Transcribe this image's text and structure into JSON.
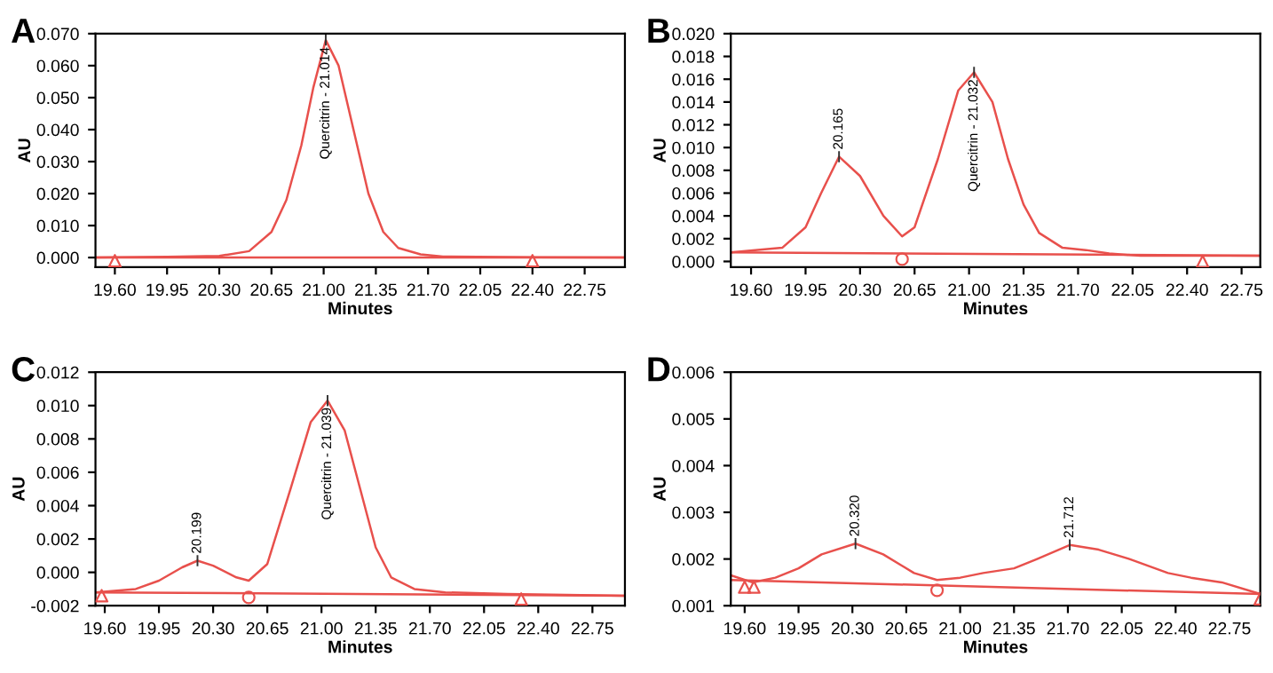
{
  "chart_data": [
    {
      "type": "line",
      "title": "A",
      "xlabel": "Minutes",
      "ylabel": "AU",
      "grid": false,
      "legend": false,
      "xlim": [
        19.47,
        23.02
      ],
      "ylim": [
        -0.003,
        0.07
      ],
      "xticks": [
        {
          "value": 19.6,
          "label": "19.60"
        },
        {
          "value": 19.95,
          "label": "19.95"
        },
        {
          "value": 20.3,
          "label": "20.30"
        },
        {
          "value": 20.65,
          "label": "20.65"
        },
        {
          "value": 21.0,
          "label": "21.00"
        },
        {
          "value": 21.35,
          "label": "21.35"
        },
        {
          "value": 21.7,
          "label": "21.70"
        },
        {
          "value": 22.05,
          "label": "22.05"
        },
        {
          "value": 22.4,
          "label": "22.40"
        },
        {
          "value": 22.75,
          "label": "22.75"
        }
      ],
      "yticks": [
        {
          "value": 0,
          "label": "0.000"
        },
        {
          "value": 0.01,
          "label": "0.010"
        },
        {
          "value": 0.02,
          "label": "0.020"
        },
        {
          "value": 0.03,
          "label": "0.030"
        },
        {
          "value": 0.04,
          "label": "0.040"
        },
        {
          "value": 0.05,
          "label": "0.050"
        },
        {
          "value": 0.06,
          "label": "0.060"
        },
        {
          "value": 0.07,
          "label": "0.070"
        }
      ],
      "annotations": [
        {
          "text": "Quercitrin - 21.014",
          "x": 21.014,
          "y": 0.068
        }
      ],
      "series": [
        {
          "color": "#e8504c",
          "x": [
            19.47,
            19.95,
            20.3,
            20.5,
            20.65,
            20.75,
            20.85,
            20.93,
            21.014,
            21.1,
            21.2,
            21.3,
            21.4,
            21.5,
            21.65,
            21.8,
            22.4,
            23.02
          ],
          "values": [
            0.0,
            0.0002,
            0.0005,
            0.002,
            0.008,
            0.018,
            0.035,
            0.053,
            0.068,
            0.06,
            0.04,
            0.02,
            0.008,
            0.003,
            0.001,
            0.0003,
            0.0001,
            0.0
          ]
        },
        {
          "color": "#e8504c",
          "x": [
            19.47,
            23.02
          ],
          "values": [
            0.0,
            0.0
          ]
        },
        {
          "type": "scatter",
          "marker": "triangle",
          "color": "#e8504c",
          "x": [
            19.6,
            22.4
          ],
          "values": [
            -0.001,
            -0.001
          ]
        }
      ]
    },
    {
      "type": "line",
      "title": "B",
      "xlabel": "Minutes",
      "ylabel": "AU",
      "grid": false,
      "legend": false,
      "xlim": [
        19.47,
        22.87
      ],
      "ylim": [
        -0.0005,
        0.02
      ],
      "xticks": [
        {
          "value": 19.6,
          "label": "19.60"
        },
        {
          "value": 19.95,
          "label": "19.95"
        },
        {
          "value": 20.3,
          "label": "20.30"
        },
        {
          "value": 20.65,
          "label": "20.65"
        },
        {
          "value": 21.0,
          "label": "21.00"
        },
        {
          "value": 21.35,
          "label": "21.35"
        },
        {
          "value": 21.7,
          "label": "21.70"
        },
        {
          "value": 22.05,
          "label": "22.05"
        },
        {
          "value": 22.4,
          "label": "22.40"
        },
        {
          "value": 22.75,
          "label": "22.75"
        }
      ],
      "yticks": [
        {
          "value": 0,
          "label": "0.000"
        },
        {
          "value": 0.002,
          "label": "0.002"
        },
        {
          "value": 0.004,
          "label": "0.004"
        },
        {
          "value": 0.006,
          "label": "0.006"
        },
        {
          "value": 0.008,
          "label": "0.008"
        },
        {
          "value": 0.01,
          "label": "0.010"
        },
        {
          "value": 0.012,
          "label": "0.012"
        },
        {
          "value": 0.014,
          "label": "0.014"
        },
        {
          "value": 0.016,
          "label": "0.016"
        },
        {
          "value": 0.018,
          "label": "0.018"
        },
        {
          "value": 0.02,
          "label": "0.020"
        }
      ],
      "annotations": [
        {
          "text": "20.165",
          "x": 20.165,
          "y": 0.0092
        },
        {
          "text": "Quercitrin - 21.032",
          "x": 21.032,
          "y": 0.0166
        }
      ],
      "series": [
        {
          "color": "#e8504c",
          "x": [
            19.47,
            19.8,
            19.95,
            20.05,
            20.165,
            20.3,
            20.45,
            20.57,
            20.65,
            20.8,
            20.93,
            21.032,
            21.15,
            21.25,
            21.35,
            21.45,
            21.6,
            21.75,
            21.9,
            22.1,
            22.87
          ],
          "values": [
            0.0008,
            0.0012,
            0.003,
            0.006,
            0.0092,
            0.0075,
            0.004,
            0.0022,
            0.003,
            0.009,
            0.015,
            0.0166,
            0.014,
            0.009,
            0.005,
            0.0025,
            0.0012,
            0.001,
            0.0007,
            0.0005,
            0.0005
          ]
        },
        {
          "color": "#e8504c",
          "x": [
            19.47,
            22.87
          ],
          "values": [
            0.0008,
            0.0005
          ]
        },
        {
          "type": "scatter",
          "marker": "circle",
          "color": "#e8504c",
          "x": [
            20.57
          ],
          "values": [
            0.0002
          ]
        },
        {
          "type": "scatter",
          "marker": "triangle",
          "color": "#e8504c",
          "x": [
            22.5
          ],
          "values": [
            0.0
          ]
        }
      ]
    },
    {
      "type": "line",
      "title": "C",
      "xlabel": "Minutes",
      "ylabel": "AU",
      "grid": false,
      "legend": false,
      "xlim": [
        19.54,
        22.96
      ],
      "ylim": [
        -0.002,
        0.012
      ],
      "xticks": [
        {
          "value": 19.6,
          "label": "19.60"
        },
        {
          "value": 19.95,
          "label": "19.95"
        },
        {
          "value": 20.3,
          "label": "20.30"
        },
        {
          "value": 20.65,
          "label": "20.65"
        },
        {
          "value": 21.0,
          "label": "21.00"
        },
        {
          "value": 21.35,
          "label": "21.35"
        },
        {
          "value": 21.7,
          "label": "21.70"
        },
        {
          "value": 22.05,
          "label": "22.05"
        },
        {
          "value": 22.4,
          "label": "22.40"
        },
        {
          "value": 22.75,
          "label": "22.75"
        }
      ],
      "yticks": [
        {
          "value": -0.002,
          "label": "-0.002"
        },
        {
          "value": 0,
          "label": "0.000"
        },
        {
          "value": 0.002,
          "label": "0.002"
        },
        {
          "value": 0.004,
          "label": "0.004"
        },
        {
          "value": 0.006,
          "label": "0.006"
        },
        {
          "value": 0.008,
          "label": "0.008"
        },
        {
          "value": 0.01,
          "label": "0.010"
        },
        {
          "value": 0.012,
          "label": "0.012"
        }
      ],
      "annotations": [
        {
          "text": "20.199",
          "x": 20.199,
          "y": 0.0007
        },
        {
          "text": "Quercitrin - 21.039",
          "x": 21.039,
          "y": 0.0103
        }
      ],
      "series": [
        {
          "color": "#e8504c",
          "x": [
            19.54,
            19.8,
            19.95,
            20.1,
            20.199,
            20.3,
            20.45,
            20.53,
            20.65,
            20.8,
            20.93,
            21.039,
            21.15,
            21.25,
            21.35,
            21.45,
            21.6,
            21.8,
            22.2,
            22.96
          ],
          "values": [
            -0.0012,
            -0.001,
            -0.0005,
            0.0003,
            0.0007,
            0.0004,
            -0.0003,
            -0.0005,
            0.0005,
            0.005,
            0.009,
            0.0103,
            0.0085,
            0.005,
            0.0015,
            -0.0003,
            -0.001,
            -0.0012,
            -0.0013,
            -0.0014
          ]
        },
        {
          "color": "#e8504c",
          "x": [
            19.54,
            22.96
          ],
          "values": [
            -0.0012,
            -0.0014
          ]
        },
        {
          "type": "scatter",
          "marker": "triangle",
          "color": "#e8504c",
          "x": [
            19.58,
            22.29
          ],
          "values": [
            -0.0014,
            -0.0016
          ]
        },
        {
          "type": "scatter",
          "marker": "circle",
          "color": "#e8504c",
          "x": [
            20.53
          ],
          "values": [
            -0.0015
          ]
        }
      ]
    },
    {
      "type": "line",
      "title": "D",
      "xlabel": "Minutes",
      "ylabel": "AU",
      "grid": false,
      "legend": false,
      "xlim": [
        19.51,
        22.95
      ],
      "ylim": [
        0.001,
        0.006
      ],
      "xticks": [
        {
          "value": 19.6,
          "label": "19.60"
        },
        {
          "value": 19.95,
          "label": "19.95"
        },
        {
          "value": 20.3,
          "label": "20.30"
        },
        {
          "value": 20.65,
          "label": "20.65"
        },
        {
          "value": 21.0,
          "label": "21.00"
        },
        {
          "value": 21.35,
          "label": "21.35"
        },
        {
          "value": 21.7,
          "label": "21.70"
        },
        {
          "value": 22.05,
          "label": "22.05"
        },
        {
          "value": 22.4,
          "label": "22.40"
        },
        {
          "value": 22.75,
          "label": "22.75"
        }
      ],
      "yticks": [
        0.001,
        0.002,
        0.003,
        0.004,
        0.005,
        0.006
      ],
      "annotations": [
        {
          "text": "20.320",
          "x": 20.32,
          "y": 0.00233
        },
        {
          "text": "21.712",
          "x": 21.712,
          "y": 0.0023
        }
      ],
      "series": [
        {
          "color": "#e8504c",
          "x": [
            19.51,
            19.65,
            19.8,
            19.95,
            20.1,
            20.32,
            20.5,
            20.7,
            20.85,
            21.0,
            21.15,
            21.35,
            21.5,
            21.712,
            21.9,
            22.1,
            22.35,
            22.5,
            22.7,
            22.95
          ],
          "values": [
            0.00165,
            0.0015,
            0.0016,
            0.0018,
            0.0021,
            0.00233,
            0.0021,
            0.0017,
            0.00155,
            0.0016,
            0.0017,
            0.0018,
            0.002,
            0.0023,
            0.0022,
            0.002,
            0.0017,
            0.0016,
            0.0015,
            0.00125
          ]
        },
        {
          "color": "#e8504c",
          "x": [
            19.51,
            22.95
          ],
          "values": [
            0.00155,
            0.00125
          ]
        },
        {
          "type": "scatter",
          "marker": "triangle",
          "color": "#e8504c",
          "x": [
            19.6,
            19.66,
            22.95
          ],
          "values": [
            0.0014,
            0.0014,
            0.00115
          ]
        },
        {
          "type": "scatter",
          "marker": "circle",
          "color": "#e8504c",
          "x": [
            20.85
          ],
          "values": [
            0.00133
          ]
        }
      ]
    }
  ]
}
